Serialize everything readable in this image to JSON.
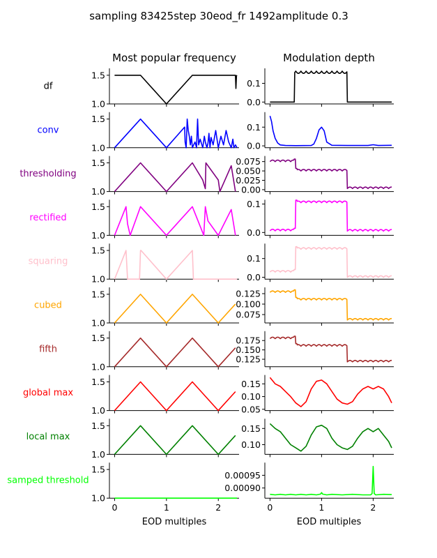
{
  "figure": {
    "suptitle": "sampling 83425step 30eod_fr 1492amplitude 0.3",
    "col_titles": [
      "Most popular frequency",
      "Modulation depth"
    ],
    "xlabel": "EOD multiples",
    "x_ticks": [
      0,
      1,
      2
    ],
    "x_tick_labels": [
      "0",
      "1",
      "2"
    ],
    "x_range": [
      -0.1,
      2.4
    ]
  },
  "chart_data": [
    {
      "row": "df",
      "color": "#000000",
      "left": {
        "type": "line",
        "ylim": [
          1.0,
          1.62
        ],
        "y_ticks": [
          1.0,
          1.5
        ],
        "y_tick_labels": [
          "1.0",
          "1.5"
        ],
        "x": [
          0,
          0.5,
          1.0,
          1.5,
          2.0,
          2.33,
          2.34,
          2.35,
          2.36
        ],
        "y": [
          1.5,
          1.5,
          1.0,
          1.5,
          1.5,
          1.5,
          1.27,
          1.49,
          1.5
        ]
      },
      "right": {
        "type": "line",
        "ylim": [
          -0.01,
          0.18
        ],
        "y_ticks": [
          0.0,
          0.1
        ],
        "y_tick_labels": [
          "0.0",
          "0.1"
        ],
        "base": 0.0,
        "high": 0.165,
        "seg": [
          [
            0,
            0.48
          ],
          [
            0.48,
            1.5
          ],
          [
            1.5,
            2.36
          ]
        ]
      }
    },
    {
      "row": "conv",
      "color": "#0000ff",
      "left": {
        "type": "line",
        "ylim": [
          1.0,
          1.62
        ],
        "y_ticks": [
          1.0,
          1.5
        ],
        "y_tick_labels": [
          "1.0",
          "1.5"
        ],
        "x": [
          0,
          0.5,
          1.0,
          1.35,
          1.36,
          1.38,
          1.4,
          1.42,
          1.44,
          1.46,
          1.48,
          1.5,
          1.55,
          1.58,
          1.6,
          1.62,
          1.65,
          1.7,
          1.73,
          1.75,
          1.78,
          1.8,
          1.82,
          1.84,
          1.86,
          1.9,
          1.95,
          2.0,
          2.05,
          2.1,
          2.15,
          2.2,
          2.25,
          2.28,
          2.3,
          2.33,
          2.36
        ],
        "y": [
          1.0,
          1.5,
          1.0,
          1.36,
          1.1,
          1.0,
          1.5,
          1.3,
          1.2,
          1.05,
          1.2,
          1.0,
          1.1,
          1.0,
          1.5,
          1.05,
          1.15,
          1.0,
          1.2,
          1.1,
          1.0,
          1.08,
          1.25,
          1.0,
          1.18,
          1.05,
          1.3,
          1.0,
          1.2,
          1.05,
          1.3,
          1.1,
          1.0,
          1.15,
          1.0,
          1.05,
          1.0
        ]
      },
      "right": {
        "type": "line",
        "ylim": [
          -0.01,
          0.18
        ],
        "y_ticks": [
          0.0,
          0.1
        ],
        "y_tick_labels": [
          "0.0",
          "0.1"
        ],
        "x": [
          0,
          0.03,
          0.06,
          0.1,
          0.15,
          0.2,
          0.3,
          0.5,
          0.8,
          0.85,
          0.9,
          0.95,
          1.0,
          1.05,
          1.1,
          1.2,
          1.5,
          1.9,
          2.0,
          2.1,
          2.36
        ],
        "y": [
          0.16,
          0.13,
          0.08,
          0.04,
          0.015,
          0.005,
          0.002,
          0.001,
          0.002,
          0.01,
          0.04,
          0.085,
          0.1,
          0.08,
          0.02,
          0.003,
          0.002,
          0.002,
          0.006,
          0.002,
          0.003
        ]
      }
    },
    {
      "row": "thresholding",
      "color": "#800080",
      "left": {
        "type": "line",
        "ylim": [
          1.0,
          1.62
        ],
        "y_ticks": [
          1.0,
          1.5
        ],
        "y_tick_labels": [
          "1.0",
          "1.5"
        ],
        "x": [
          0,
          0.5,
          1.0,
          1.5,
          1.7,
          1.75,
          1.76,
          2.0,
          2.03,
          2.25,
          2.33
        ],
        "y": [
          1.0,
          1.5,
          1.0,
          1.5,
          1.2,
          1.05,
          1.5,
          1.2,
          1.0,
          1.45,
          1.0
        ]
      },
      "right": {
        "type": "line",
        "ylim": [
          -0.005,
          0.09
        ],
        "y_ticks": [
          0.0,
          0.025,
          0.05,
          0.075
        ],
        "y_tick_labels": [
          "0.00",
          "0.025",
          "0.050",
          "0.075"
        ],
        "base": 0.0,
        "seg3": [
          0.075,
          0.05,
          0.003
        ]
      }
    },
    {
      "row": "rectified",
      "color": "#ff00ff",
      "left": {
        "type": "line",
        "ylim": [
          1.0,
          1.62
        ],
        "y_ticks": [
          1.0,
          1.5
        ],
        "y_tick_labels": [
          "1.0",
          "1.5"
        ],
        "x": [
          0,
          0.22,
          0.25,
          0.3,
          0.5,
          1.0,
          1.5,
          1.72,
          1.75,
          1.8,
          2.0,
          2.25,
          2.33
        ],
        "y": [
          1.0,
          1.5,
          1.2,
          1.0,
          1.5,
          1.0,
          1.5,
          1.0,
          1.5,
          1.25,
          1.0,
          1.45,
          1.0
        ]
      },
      "right": {
        "type": "line",
        "ylim": [
          -0.01,
          0.115
        ],
        "y_ticks": [
          0.0,
          0.1
        ],
        "y_tick_labels": [
          "0.0",
          "0.1"
        ],
        "seg3": [
          0.006,
          0.105,
          0.005
        ]
      }
    },
    {
      "row": "squaring",
      "color": "#ffc0cb",
      "left": {
        "type": "line",
        "ylim": [
          1.0,
          1.62
        ],
        "y_ticks": [
          1.0,
          1.5
        ],
        "y_tick_labels": [
          "1.0",
          "1.5"
        ],
        "x": [
          0,
          0.22,
          0.25,
          0.48,
          0.5,
          0.51,
          1.0,
          1.5,
          1.52,
          2.36
        ],
        "y": [
          1.0,
          1.5,
          1.0,
          1.0,
          1.5,
          1.5,
          1.0,
          1.5,
          1.0,
          1.0
        ]
      },
      "right": {
        "type": "line",
        "ylim": [
          -0.01,
          0.18
        ],
        "y_ticks": [
          0.0,
          0.1
        ],
        "y_tick_labels": [
          "0.0",
          "0.1"
        ],
        "seg3": [
          0.028,
          0.15,
          0.0
        ]
      }
    },
    {
      "row": "cubed",
      "color": "#ffa500",
      "left": {
        "type": "line",
        "ylim": [
          1.0,
          1.62
        ],
        "y_ticks": [
          1.0,
          1.5
        ],
        "y_tick_labels": [
          "1.0",
          "1.5"
        ],
        "x": [
          0,
          0.5,
          1.0,
          1.5,
          2.0,
          2.33
        ],
        "y": [
          1.0,
          1.5,
          1.0,
          1.5,
          1.0,
          1.33
        ]
      },
      "right": {
        "type": "line",
        "ylim": [
          0.055,
          0.14
        ],
        "y_ticks": [
          0.075,
          0.1,
          0.125
        ],
        "y_tick_labels": [
          "0.075",
          "0.100",
          "0.125"
        ],
        "seg3": [
          0.128,
          0.11,
          0.062
        ]
      }
    },
    {
      "row": "fifth",
      "color": "#a52a2a",
      "left": {
        "type": "line",
        "ylim": [
          1.0,
          1.62
        ],
        "y_ticks": [
          1.0,
          1.5
        ],
        "y_tick_labels": [
          "1.0",
          "1.5"
        ],
        "x": [
          0,
          0.5,
          1.0,
          1.5,
          2.0,
          2.33
        ],
        "y": [
          1.0,
          1.5,
          1.0,
          1.5,
          1.0,
          1.33
        ]
      },
      "right": {
        "type": "line",
        "ylim": [
          0.105,
          0.2
        ],
        "y_ticks": [
          0.125,
          0.15,
          0.175
        ],
        "y_tick_labels": [
          "0.125",
          "0.150",
          "0.175"
        ],
        "seg3": [
          0.18,
          0.16,
          0.118
        ]
      }
    },
    {
      "row": "global max",
      "color": "#ff0000",
      "left": {
        "type": "line",
        "ylim": [
          1.0,
          1.62
        ],
        "y_ticks": [
          1.0,
          1.5
        ],
        "y_tick_labels": [
          "1.0",
          "1.5"
        ],
        "x": [
          0,
          0.5,
          1.0,
          1.5,
          2.0,
          2.33
        ],
        "y": [
          1.0,
          1.5,
          1.0,
          1.5,
          1.0,
          1.33
        ]
      },
      "right": {
        "type": "line",
        "ylim": [
          0.045,
          0.185
        ],
        "y_ticks": [
          0.05,
          0.1,
          0.15
        ],
        "y_tick_labels": [
          "0.05",
          "0.10",
          "0.15"
        ],
        "x": [
          0,
          0.1,
          0.2,
          0.3,
          0.4,
          0.5,
          0.6,
          0.7,
          0.8,
          0.9,
          1.0,
          1.1,
          1.2,
          1.3,
          1.4,
          1.5,
          1.6,
          1.7,
          1.8,
          1.9,
          2.0,
          2.1,
          2.2,
          2.3,
          2.36
        ],
        "y": [
          0.175,
          0.15,
          0.14,
          0.12,
          0.1,
          0.075,
          0.06,
          0.08,
          0.13,
          0.16,
          0.165,
          0.15,
          0.12,
          0.09,
          0.075,
          0.07,
          0.08,
          0.11,
          0.13,
          0.14,
          0.13,
          0.14,
          0.13,
          0.1,
          0.075
        ]
      }
    },
    {
      "row": "local max",
      "color": "#008000",
      "left": {
        "type": "line",
        "ylim": [
          1.0,
          1.62
        ],
        "y_ticks": [
          1.0,
          1.5
        ],
        "y_tick_labels": [
          "1.0",
          "1.5"
        ],
        "x": [
          0,
          0.5,
          1.0,
          1.5,
          2.0,
          2.33
        ],
        "y": [
          1.0,
          1.5,
          1.0,
          1.5,
          1.0,
          1.33
        ]
      },
      "right": {
        "type": "line",
        "ylim": [
          0.07,
          0.18
        ],
        "y_ticks": [
          0.1,
          0.15
        ],
        "y_tick_labels": [
          "0.10",
          "0.15"
        ],
        "x": [
          0,
          0.1,
          0.2,
          0.3,
          0.4,
          0.5,
          0.6,
          0.7,
          0.8,
          0.9,
          1.0,
          1.1,
          1.2,
          1.3,
          1.4,
          1.5,
          1.6,
          1.7,
          1.8,
          1.9,
          2.0,
          2.1,
          2.2,
          2.3,
          2.36
        ],
        "y": [
          0.165,
          0.15,
          0.14,
          0.12,
          0.1,
          0.09,
          0.08,
          0.095,
          0.13,
          0.155,
          0.16,
          0.15,
          0.12,
          0.1,
          0.09,
          0.085,
          0.095,
          0.12,
          0.14,
          0.15,
          0.14,
          0.15,
          0.13,
          0.11,
          0.09
        ]
      }
    },
    {
      "row": "samped threshold",
      "color": "#00ff00",
      "left": {
        "type": "line",
        "ylim": [
          1.0,
          1.62
        ],
        "y_ticks": [
          1.0,
          1.5
        ],
        "y_tick_labels": [
          "1.0",
          "1.5"
        ],
        "x": [
          0,
          2.36
        ],
        "y": [
          1.0,
          1.0
        ]
      },
      "right": {
        "type": "line",
        "ylim": [
          0.00086,
          0.001
        ],
        "y_ticks": [
          0.0009,
          0.00095
        ],
        "y_tick_labels": [
          "0.00090",
          "0.00095"
        ],
        "x": [
          0,
          0.1,
          0.2,
          0.3,
          0.4,
          0.5,
          0.6,
          0.7,
          0.8,
          0.9,
          0.98,
          1.0,
          1.02,
          1.1,
          1.2,
          1.4,
          1.6,
          1.8,
          1.95,
          1.98,
          2.0,
          2.02,
          2.05,
          2.2,
          2.36
        ],
        "y": [
          0.000875,
          0.000873,
          0.000875,
          0.000873,
          0.000875,
          0.000873,
          0.000875,
          0.000873,
          0.000875,
          0.000873,
          0.000876,
          0.000882,
          0.000876,
          0.000873,
          0.000875,
          0.000873,
          0.000875,
          0.000873,
          0.000873,
          0.000878,
          0.000985,
          0.000878,
          0.000873,
          0.000875,
          0.000874
        ]
      }
    }
  ]
}
